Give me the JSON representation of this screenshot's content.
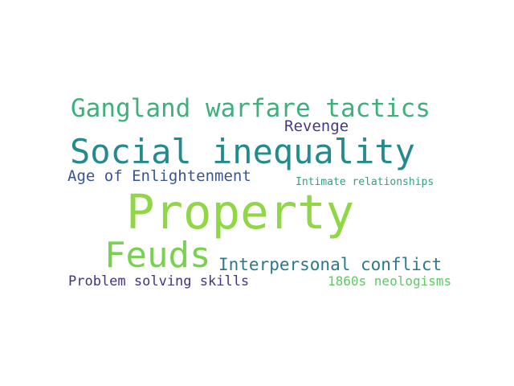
{
  "words": [
    {
      "text": "Gangland warfare tactics",
      "color": "#3fb07c"
    },
    {
      "text": "Revenge",
      "color": "#443a83"
    },
    {
      "text": "Social inequality",
      "color": "#238a8d"
    },
    {
      "text": "Age of Enlightenment",
      "color": "#39568c"
    },
    {
      "text": "Intimate relationships",
      "color": "#29a384"
    },
    {
      "text": "Property",
      "color": "#8fd744"
    },
    {
      "text": "Feuds",
      "color": "#7ad151"
    },
    {
      "text": "Interpersonal conflict",
      "color": "#2a788e"
    },
    {
      "text": "Problem solving skills",
      "color": "#46327e"
    },
    {
      "text": "1860s neologisms",
      "color": "#5ec962"
    }
  ]
}
